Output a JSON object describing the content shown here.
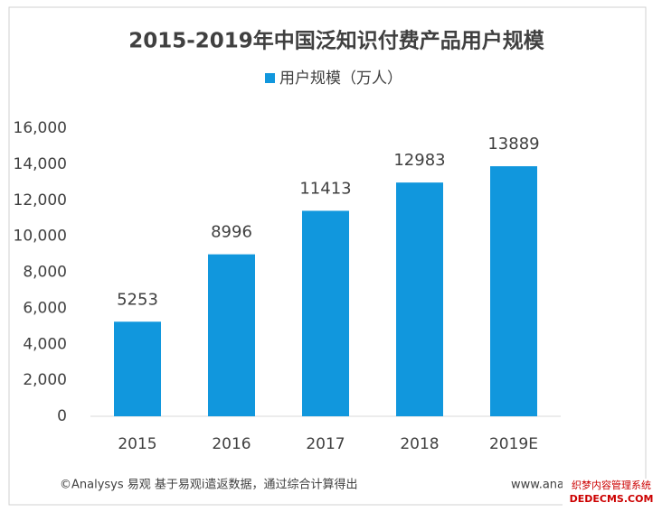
{
  "chart_data": {
    "type": "bar",
    "title": "2015-2019年中国泛知识付费产品用户规模",
    "series": [
      {
        "name": "用户规模（万人）",
        "color": "#1197dd",
        "values": [
          5253,
          8996,
          11413,
          12983,
          13889
        ]
      }
    ],
    "categories": [
      "2015",
      "2016",
      "2017",
      "2018",
      "2019E"
    ],
    "ylim": [
      0,
      16000
    ],
    "yticks": [
      0,
      {
        "value": 2000,
        "label": "2,000"
      },
      {
        "value": 4000,
        "label": "4,000"
      },
      {
        "value": 6000,
        "label": "6,000"
      },
      {
        "value": 8000,
        "label": "8,000"
      },
      {
        "value": 10000,
        "label": "10,000"
      },
      {
        "value": 12000,
        "label": "12,000"
      },
      {
        "value": 14000,
        "label": "14,000"
      },
      {
        "value": 16000,
        "label": "16,000"
      }
    ],
    "source": "©Analysys 易观 基于易观i遣返数据，通过综合计算得出",
    "website": "www.anal",
    "watermark": [
      "织梦内容管理系统",
      "DEDECMS.COM"
    ]
  }
}
